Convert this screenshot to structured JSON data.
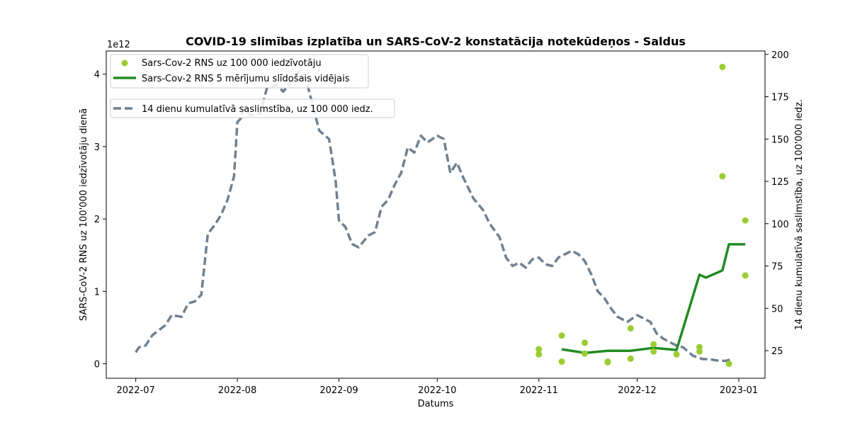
{
  "chart_data": {
    "type": "line",
    "title": "COVID-19 slimības izplatība un SARS-CoV-2 konstatācija notekūdeņos - Saldus",
    "xlabel": "Datums",
    "ylabel_left": "SARS-CoV-2 RNS uz 100'000 iedzīvotāju dienā",
    "ylabel_right": "14 dienu kumulatīvā saslimstība, uz 100'000 iedz.",
    "left_scale_label": "1e12",
    "x_ticks": [
      "2022-07",
      "2022-08",
      "2022-09",
      "2022-10",
      "2022-11",
      "2022-12",
      "2023-01"
    ],
    "y_left_ticks": [
      "0",
      "1",
      "2",
      "3",
      "4"
    ],
    "y_right_ticks": [
      "25",
      "50",
      "75",
      "100",
      "125",
      "150",
      "175",
      "200"
    ],
    "xlim": [
      "2022-06-22",
      "2023-01-09"
    ],
    "ylim_left": [
      -0.2,
      4.32
    ],
    "ylim_right": [
      8.7,
      202
    ],
    "legend": {
      "placement": "top-left",
      "scatter_label": "Sars-Cov-2 RNS uz 100 000 iedzīvotāju",
      "rolling_label": "Sars-Cov-2 RNS 5 mērījumu slīdošais vidējais",
      "incidence_label": "14 dienu kumulatīvā saslimstība, uz 100 000 iedz."
    },
    "colors": {
      "scatter": "#9acd32",
      "rolling": "#228b22",
      "incidence": "#708090"
    },
    "series": [
      {
        "name": "Sars-Cov-2 RNS uz 100 000 iedzīvotāju",
        "kind": "scatter",
        "axis": "left",
        "points": [
          [
            "2022-11-01",
            0.13
          ],
          [
            "2022-11-01",
            0.2
          ],
          [
            "2022-11-08",
            0.03
          ],
          [
            "2022-11-08",
            0.39
          ],
          [
            "2022-11-15",
            0.14
          ],
          [
            "2022-11-15",
            0.29
          ],
          [
            "2022-11-22",
            0.02
          ],
          [
            "2022-11-22",
            0.03
          ],
          [
            "2022-11-29",
            0.07
          ],
          [
            "2022-11-29",
            0.49
          ],
          [
            "2022-12-06",
            0.17
          ],
          [
            "2022-12-06",
            0.27
          ],
          [
            "2022-12-13",
            0.13
          ],
          [
            "2022-12-20",
            0.17
          ],
          [
            "2022-12-20",
            0.23
          ],
          [
            "2022-12-27",
            2.59
          ],
          [
            "2022-12-27",
            4.1
          ],
          [
            "2022-12-29",
            0.0
          ],
          [
            "2023-01-03",
            1.22
          ],
          [
            "2023-01-03",
            1.98
          ]
        ]
      },
      {
        "name": "Sars-Cov-2 RNS 5 mērījumu slīdošais vidējais",
        "kind": "line",
        "axis": "left",
        "points": [
          [
            "2022-11-08",
            0.2
          ],
          [
            "2022-11-15",
            0.15
          ],
          [
            "2022-11-22",
            0.18
          ],
          [
            "2022-11-29",
            0.18
          ],
          [
            "2022-12-06",
            0.22
          ],
          [
            "2022-12-13",
            0.19
          ],
          [
            "2022-12-20",
            1.23
          ],
          [
            "2022-12-22",
            1.19
          ],
          [
            "2022-12-27",
            1.29
          ],
          [
            "2022-12-29",
            1.65
          ],
          [
            "2023-01-03",
            1.65
          ]
        ]
      },
      {
        "name": "14 dienu kumulatīvā saslimstība, uz 100 000 iedz.",
        "kind": "line",
        "axis": "right",
        "points": [
          [
            "2022-07-01",
            24
          ],
          [
            "2022-07-02",
            27
          ],
          [
            "2022-07-04",
            28
          ],
          [
            "2022-07-06",
            34
          ],
          [
            "2022-07-08",
            37
          ],
          [
            "2022-07-10",
            40
          ],
          [
            "2022-07-12",
            46
          ],
          [
            "2022-07-15",
            45
          ],
          [
            "2022-07-17",
            53
          ],
          [
            "2022-07-19",
            54
          ],
          [
            "2022-07-21",
            58
          ],
          [
            "2022-07-23",
            94
          ],
          [
            "2022-07-25",
            99
          ],
          [
            "2022-07-27",
            105
          ],
          [
            "2022-07-29",
            114
          ],
          [
            "2022-07-31",
            128
          ],
          [
            "2022-08-01",
            160
          ],
          [
            "2022-08-02",
            162
          ],
          [
            "2022-08-03",
            168
          ],
          [
            "2022-08-05",
            164
          ],
          [
            "2022-08-08",
            165
          ],
          [
            "2022-08-10",
            180
          ],
          [
            "2022-08-13",
            182
          ],
          [
            "2022-08-15",
            178
          ],
          [
            "2022-08-17",
            183
          ],
          [
            "2022-08-20",
            190
          ],
          [
            "2022-08-22",
            185
          ],
          [
            "2022-08-24",
            170
          ],
          [
            "2022-08-26",
            155
          ],
          [
            "2022-08-29",
            150
          ],
          [
            "2022-08-31",
            125
          ],
          [
            "2022-09-01",
            102
          ],
          [
            "2022-09-03",
            98
          ],
          [
            "2022-09-05",
            88
          ],
          [
            "2022-09-07",
            86
          ],
          [
            "2022-09-10",
            93
          ],
          [
            "2022-09-12",
            95
          ],
          [
            "2022-09-14",
            110
          ],
          [
            "2022-09-16",
            114
          ],
          [
            "2022-09-18",
            123
          ],
          [
            "2022-09-20",
            130
          ],
          [
            "2022-09-22",
            145
          ],
          [
            "2022-09-24",
            142
          ],
          [
            "2022-09-26",
            152
          ],
          [
            "2022-09-28",
            148
          ],
          [
            "2022-10-01",
            152
          ],
          [
            "2022-10-03",
            150
          ],
          [
            "2022-10-05",
            130
          ],
          [
            "2022-10-07",
            136
          ],
          [
            "2022-10-09",
            127
          ],
          [
            "2022-10-12",
            115
          ],
          [
            "2022-10-15",
            108
          ],
          [
            "2022-10-17",
            100
          ],
          [
            "2022-10-20",
            92
          ],
          [
            "2022-10-22",
            80
          ],
          [
            "2022-10-24",
            75
          ],
          [
            "2022-10-26",
            77
          ],
          [
            "2022-10-28",
            74
          ],
          [
            "2022-10-30",
            79
          ],
          [
            "2022-11-01",
            80
          ],
          [
            "2022-11-03",
            76
          ],
          [
            "2022-11-05",
            75
          ],
          [
            "2022-11-07",
            80
          ],
          [
            "2022-11-09",
            82
          ],
          [
            "2022-11-11",
            84
          ],
          [
            "2022-11-13",
            82
          ],
          [
            "2022-11-15",
            78
          ],
          [
            "2022-11-17",
            70
          ],
          [
            "2022-11-19",
            60
          ],
          [
            "2022-11-21",
            56
          ],
          [
            "2022-11-23",
            50
          ],
          [
            "2022-11-25",
            45
          ],
          [
            "2022-11-28",
            42
          ],
          [
            "2022-12-01",
            46
          ],
          [
            "2022-12-03",
            44
          ],
          [
            "2022-12-05",
            42
          ],
          [
            "2022-12-07",
            35
          ],
          [
            "2022-12-09",
            32
          ],
          [
            "2022-12-11",
            30
          ],
          [
            "2022-12-13",
            28
          ],
          [
            "2022-12-15",
            27
          ],
          [
            "2022-12-18",
            22
          ],
          [
            "2022-12-21",
            20
          ],
          [
            "2022-12-23",
            20
          ],
          [
            "2022-12-26",
            19
          ],
          [
            "2022-12-28",
            19
          ],
          [
            "2022-12-30",
            20
          ]
        ]
      }
    ]
  }
}
